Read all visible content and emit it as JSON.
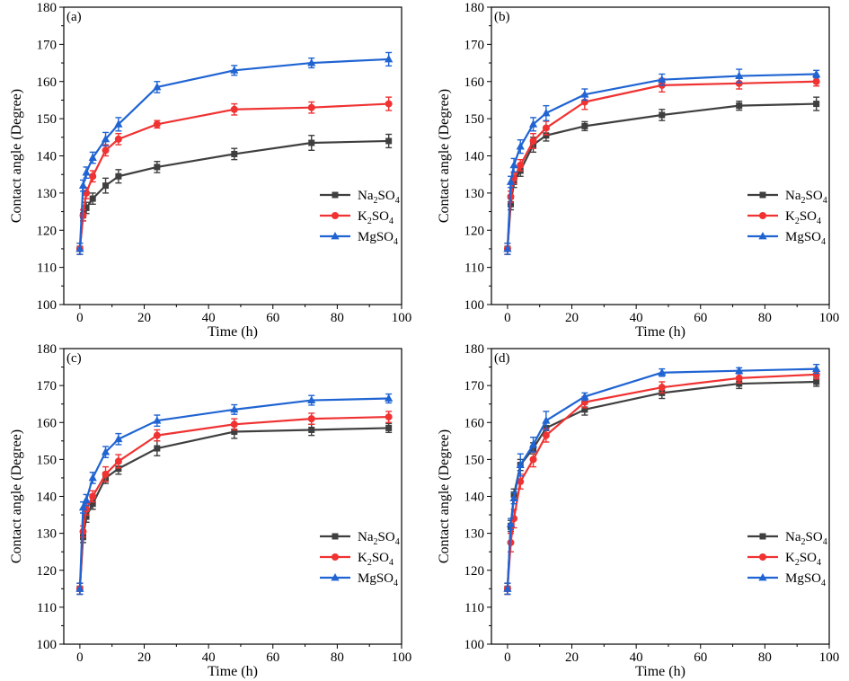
{
  "chart_data": [
    {
      "type": "line",
      "panel_label": "(a)",
      "xlabel": "Time (h)",
      "ylabel": "Contact angle (Degree)",
      "xlim": [
        -5,
        100
      ],
      "ylim": [
        100,
        180
      ],
      "xticks": [
        0,
        20,
        40,
        60,
        80,
        100
      ],
      "yticks": [
        100,
        110,
        120,
        130,
        140,
        150,
        160,
        170,
        180
      ],
      "x": [
        0,
        1,
        2,
        4,
        8,
        12,
        24,
        48,
        72,
        96
      ],
      "legend_position": "center-right",
      "series": [
        {
          "name": "Na2SO4",
          "name_main": "Na",
          "name_sub": "2",
          "name_tail": "SO",
          "name_sub2": "4",
          "color": "#3f3f3f",
          "marker": "square",
          "values": [
            115,
            124,
            126,
            128.5,
            132,
            134.5,
            137,
            140.5,
            143.5,
            144
          ],
          "errors": [
            1.5,
            1.5,
            1.5,
            1.5,
            2.0,
            1.8,
            1.5,
            1.5,
            2.0,
            1.8
          ]
        },
        {
          "name": "K2SO4",
          "name_main": "K",
          "name_sub": "2",
          "name_tail": "SO",
          "name_sub2": "4",
          "color": "#f03232",
          "marker": "circle",
          "values": [
            115,
            124,
            130,
            134.5,
            141.5,
            144.5,
            148.5,
            152.5,
            153,
            154
          ],
          "errors": [
            1.5,
            1.5,
            1.5,
            1.5,
            1.5,
            1.5,
            1.0,
            1.5,
            1.5,
            1.8
          ]
        },
        {
          "name": "MgSO4",
          "name_main": "MgSO",
          "name_sub": "4",
          "name_tail": "",
          "name_sub2": "",
          "color": "#1f64d2",
          "marker": "triangle",
          "values": [
            115,
            132,
            135.5,
            139.5,
            144.5,
            148.5,
            158.5,
            163,
            165,
            166
          ],
          "errors": [
            1.5,
            1.5,
            1.5,
            1.5,
            1.8,
            1.8,
            1.5,
            1.3,
            1.3,
            1.8
          ]
        }
      ]
    },
    {
      "type": "line",
      "panel_label": "(b)",
      "xlabel": "Time (h)",
      "ylabel": "Contact angle (Degree)",
      "xlim": [
        -5,
        100
      ],
      "ylim": [
        100,
        180
      ],
      "xticks": [
        0,
        20,
        40,
        60,
        80,
        100
      ],
      "yticks": [
        100,
        110,
        120,
        130,
        140,
        150,
        160,
        170,
        180
      ],
      "x": [
        0,
        1,
        2,
        4,
        8,
        12,
        24,
        48,
        72,
        96
      ],
      "legend_position": "center-right",
      "series": [
        {
          "name": "Na2SO4",
          "name_main": "Na",
          "name_sub": "2",
          "name_tail": "SO",
          "name_sub2": "4",
          "color": "#3f3f3f",
          "marker": "square",
          "values": [
            115,
            127,
            133,
            136,
            143,
            145.5,
            148,
            151,
            153.5,
            154
          ],
          "errors": [
            1.5,
            1.5,
            1.5,
            1.5,
            2.0,
            1.5,
            1.2,
            1.5,
            1.2,
            1.8
          ]
        },
        {
          "name": "K2SO4",
          "name_main": "K",
          "name_sub": "2",
          "name_tail": "SO",
          "name_sub2": "4",
          "color": "#f03232",
          "marker": "circle",
          "values": [
            115,
            129,
            134,
            137.5,
            144,
            147.5,
            154.5,
            159,
            159.5,
            160
          ],
          "errors": [
            1.5,
            1.5,
            1.5,
            1.5,
            2.0,
            1.8,
            2.0,
            1.8,
            1.5,
            1.2
          ]
        },
        {
          "name": "MgSO4",
          "name_main": "MgSO",
          "name_sub": "4",
          "name_tail": "",
          "name_sub2": "",
          "color": "#1f64d2",
          "marker": "triangle",
          "values": [
            115,
            133,
            137.5,
            142.5,
            148.5,
            151.5,
            156.5,
            160.5,
            161.5,
            162
          ],
          "errors": [
            1.5,
            1.5,
            1.8,
            1.8,
            1.8,
            2.0,
            1.5,
            1.5,
            1.8,
            1.0
          ]
        }
      ]
    },
    {
      "type": "line",
      "panel_label": "(c)",
      "xlabel": "Time (h)",
      "ylabel": "Contact angle (Degree)",
      "xlim": [
        -5,
        100
      ],
      "ylim": [
        100,
        180
      ],
      "xticks": [
        0,
        20,
        40,
        60,
        80,
        100
      ],
      "yticks": [
        100,
        110,
        120,
        130,
        140,
        150,
        160,
        170,
        180
      ],
      "x": [
        0,
        1,
        2,
        4,
        8,
        12,
        24,
        48,
        72,
        96
      ],
      "legend_position": "center-right",
      "series": [
        {
          "name": "Na2SO4",
          "name_main": "Na",
          "name_sub": "2",
          "name_tail": "SO",
          "name_sub2": "4",
          "color": "#3f3f3f",
          "marker": "square",
          "values": [
            115,
            129,
            134.5,
            138,
            145,
            147.5,
            153,
            157.5,
            158,
            158.5
          ],
          "errors": [
            1.5,
            1.5,
            1.5,
            1.5,
            1.5,
            1.5,
            2.0,
            1.8,
            1.5,
            1.2
          ]
        },
        {
          "name": "K2SO4",
          "name_main": "K",
          "name_sub": "2",
          "name_tail": "SO",
          "name_sub2": "4",
          "color": "#f03232",
          "marker": "circle",
          "values": [
            115,
            130.5,
            136.5,
            140,
            146,
            149.5,
            156.5,
            159.5,
            161,
            161.5
          ],
          "errors": [
            1.5,
            1.5,
            1.5,
            1.5,
            2.0,
            1.8,
            1.5,
            1.5,
            1.5,
            1.5
          ]
        },
        {
          "name": "MgSO4",
          "name_main": "MgSO",
          "name_sub": "4",
          "name_tail": "",
          "name_sub2": "",
          "color": "#1f64d2",
          "marker": "triangle",
          "values": [
            115,
            137,
            139,
            145,
            152,
            155.5,
            160.5,
            163.5,
            166,
            166.5
          ],
          "errors": [
            1.5,
            1.5,
            1.5,
            1.5,
            1.5,
            1.5,
            1.5,
            1.3,
            1.3,
            1.2
          ]
        }
      ]
    },
    {
      "type": "line",
      "panel_label": "(d)",
      "xlabel": "Time (h)",
      "ylabel": "Contact angle (Degree)",
      "xlim": [
        -5,
        100
      ],
      "ylim": [
        100,
        180
      ],
      "xticks": [
        0,
        20,
        40,
        60,
        80,
        100
      ],
      "yticks": [
        100,
        110,
        120,
        130,
        140,
        150,
        160,
        170,
        180
      ],
      "x": [
        0,
        1,
        2,
        4,
        8,
        12,
        24,
        48,
        72,
        96
      ],
      "legend_position": "center-right",
      "series": [
        {
          "name": "Na2SO4",
          "name_main": "Na",
          "name_sub": "2",
          "name_tail": "SO",
          "name_sub2": "4",
          "color": "#3f3f3f",
          "marker": "square",
          "values": [
            115,
            132,
            140.5,
            148.5,
            153,
            158.5,
            163.5,
            168,
            170.5,
            171
          ],
          "errors": [
            1.5,
            1.5,
            1.5,
            1.5,
            1.5,
            1.5,
            1.5,
            1.5,
            1.3,
            1.2
          ]
        },
        {
          "name": "K2SO4",
          "name_main": "K",
          "name_sub": "2",
          "name_tail": "SO",
          "name_sub2": "4",
          "color": "#f03232",
          "marker": "circle",
          "values": [
            115,
            127.5,
            134,
            144,
            150,
            156.5,
            165.5,
            169.5,
            172,
            173
          ],
          "errors": [
            1.5,
            2.5,
            2.5,
            2.0,
            2.0,
            1.8,
            1.5,
            1.5,
            1.3,
            1.2
          ]
        },
        {
          "name": "MgSO4",
          "name_main": "MgSO",
          "name_sub": "4",
          "name_tail": "",
          "name_sub2": "",
          "color": "#1f64d2",
          "marker": "triangle",
          "values": [
            115,
            132.5,
            139.5,
            148.5,
            154,
            160.5,
            167,
            173.5,
            174,
            174.5
          ],
          "errors": [
            1.5,
            1.5,
            1.5,
            3.0,
            2.0,
            2.5,
            1.0,
            1.0,
            0.8,
            1.2
          ]
        }
      ]
    }
  ]
}
